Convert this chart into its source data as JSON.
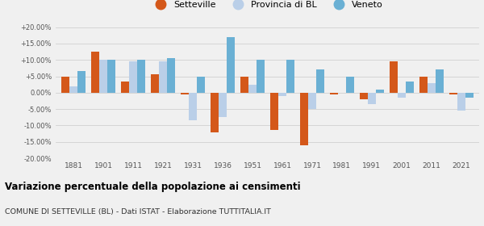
{
  "years": [
    1881,
    1901,
    1911,
    1921,
    1931,
    1936,
    1951,
    1961,
    1971,
    1981,
    1991,
    2001,
    2011,
    2021
  ],
  "setteville": [
    5.0,
    12.5,
    3.5,
    5.5,
    -0.5,
    -12.0,
    5.0,
    -11.5,
    -16.0,
    -0.5,
    -2.0,
    9.5,
    5.0,
    -0.5
  ],
  "provincia_bl": [
    2.0,
    10.0,
    9.5,
    9.5,
    -8.5,
    -7.5,
    2.5,
    -1.0,
    -5.0,
    0.0,
    -3.5,
    -1.5,
    3.0,
    -5.5
  ],
  "veneto": [
    6.5,
    10.0,
    10.0,
    10.5,
    5.0,
    17.0,
    10.0,
    10.0,
    7.0,
    5.0,
    1.0,
    3.5,
    7.0,
    -1.5
  ],
  "color_setteville": "#d4581a",
  "color_provincia": "#bacfe8",
  "color_veneto": "#6ab0d4",
  "title": "Variazione percentuale della popolazione ai censimenti",
  "subtitle": "COMUNE DI SETTEVILLE (BL) - Dati ISTAT - Elaborazione TUTTITALIA.IT",
  "ylim": [
    -20,
    20
  ],
  "yticks": [
    -20,
    -15,
    -10,
    -5,
    0,
    5,
    10,
    15,
    20
  ],
  "fig_bg": "#f0f0f0"
}
